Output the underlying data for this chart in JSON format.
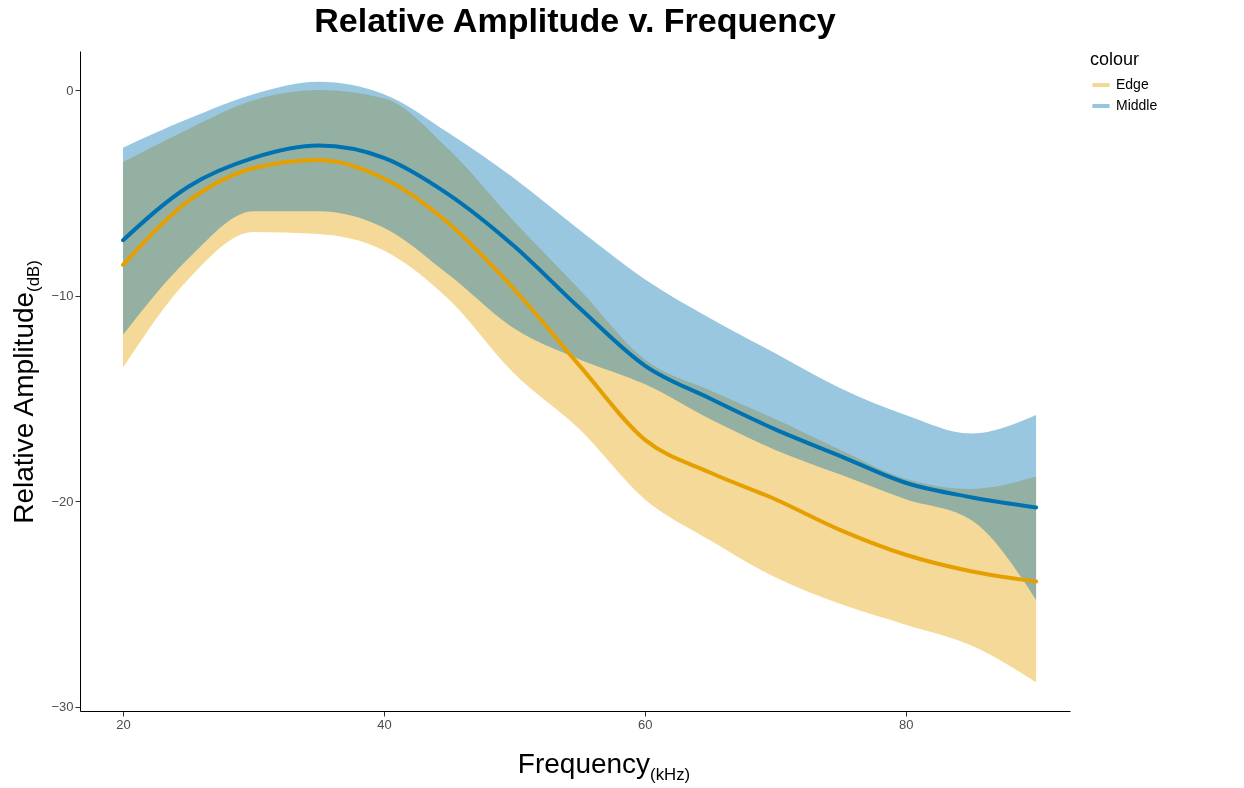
{
  "chart_data": {
    "type": "line",
    "title": "Relative Amplitude v. Frequency",
    "xlabel": "Frequency$_{(kHz)}$",
    "ylabel": "Relative Amplitude$_{(dB)}$",
    "legend_title": "colour",
    "legend": "right",
    "grid": false,
    "x": [
      20,
      25,
      30,
      35,
      40,
      45,
      50,
      55,
      60,
      65,
      70,
      75,
      80,
      85,
      90
    ],
    "xlim": [
      16.7,
      92.6
    ],
    "xticks": [
      20,
      40,
      60,
      80
    ],
    "ylim": [
      -30.2,
      1.9
    ],
    "yticks": [
      -30,
      -20,
      -10,
      0
    ],
    "series": [
      {
        "name": "Edge",
        "color": "#e69f00",
        "values": [
          -8.5,
          -5.4,
          -3.8,
          -3.4,
          -4.3,
          -6.5,
          -9.7,
          -13.4,
          -17.0,
          -18.6,
          -19.9,
          -21.4,
          -22.6,
          -23.4,
          -23.9
        ],
        "lower": [
          -13.5,
          -9.2,
          -6.9,
          -7.0,
          -7.8,
          -10.2,
          -13.8,
          -16.5,
          -19.9,
          -21.9,
          -23.7,
          -25.0,
          -26.0,
          -27.0,
          -28.8
        ],
        "upper": [
          -3.5,
          -1.9,
          -0.5,
          0.0,
          -0.4,
          -2.9,
          -6.4,
          -9.7,
          -13.1,
          -14.6,
          -16.0,
          -17.5,
          -18.9,
          -19.4,
          -18.8
        ]
      },
      {
        "name": "Middle",
        "color": "#0072b2",
        "values": [
          -7.3,
          -4.7,
          -3.3,
          -2.7,
          -3.3,
          -5.1,
          -7.6,
          -10.6,
          -13.4,
          -15.0,
          -16.5,
          -17.8,
          -19.1,
          -19.8,
          -20.3
        ],
        "lower": [
          -11.9,
          -8.2,
          -5.9,
          -5.9,
          -6.7,
          -9.0,
          -11.6,
          -13.1,
          -14.3,
          -16.0,
          -17.5,
          -18.7,
          -19.9,
          -20.9,
          -24.8
        ],
        "upper": [
          -2.8,
          -1.4,
          -0.2,
          0.4,
          -0.2,
          -2.1,
          -4.3,
          -6.8,
          -9.2,
          -11.1,
          -12.8,
          -14.5,
          -15.8,
          -16.7,
          -15.8
        ]
      }
    ]
  }
}
